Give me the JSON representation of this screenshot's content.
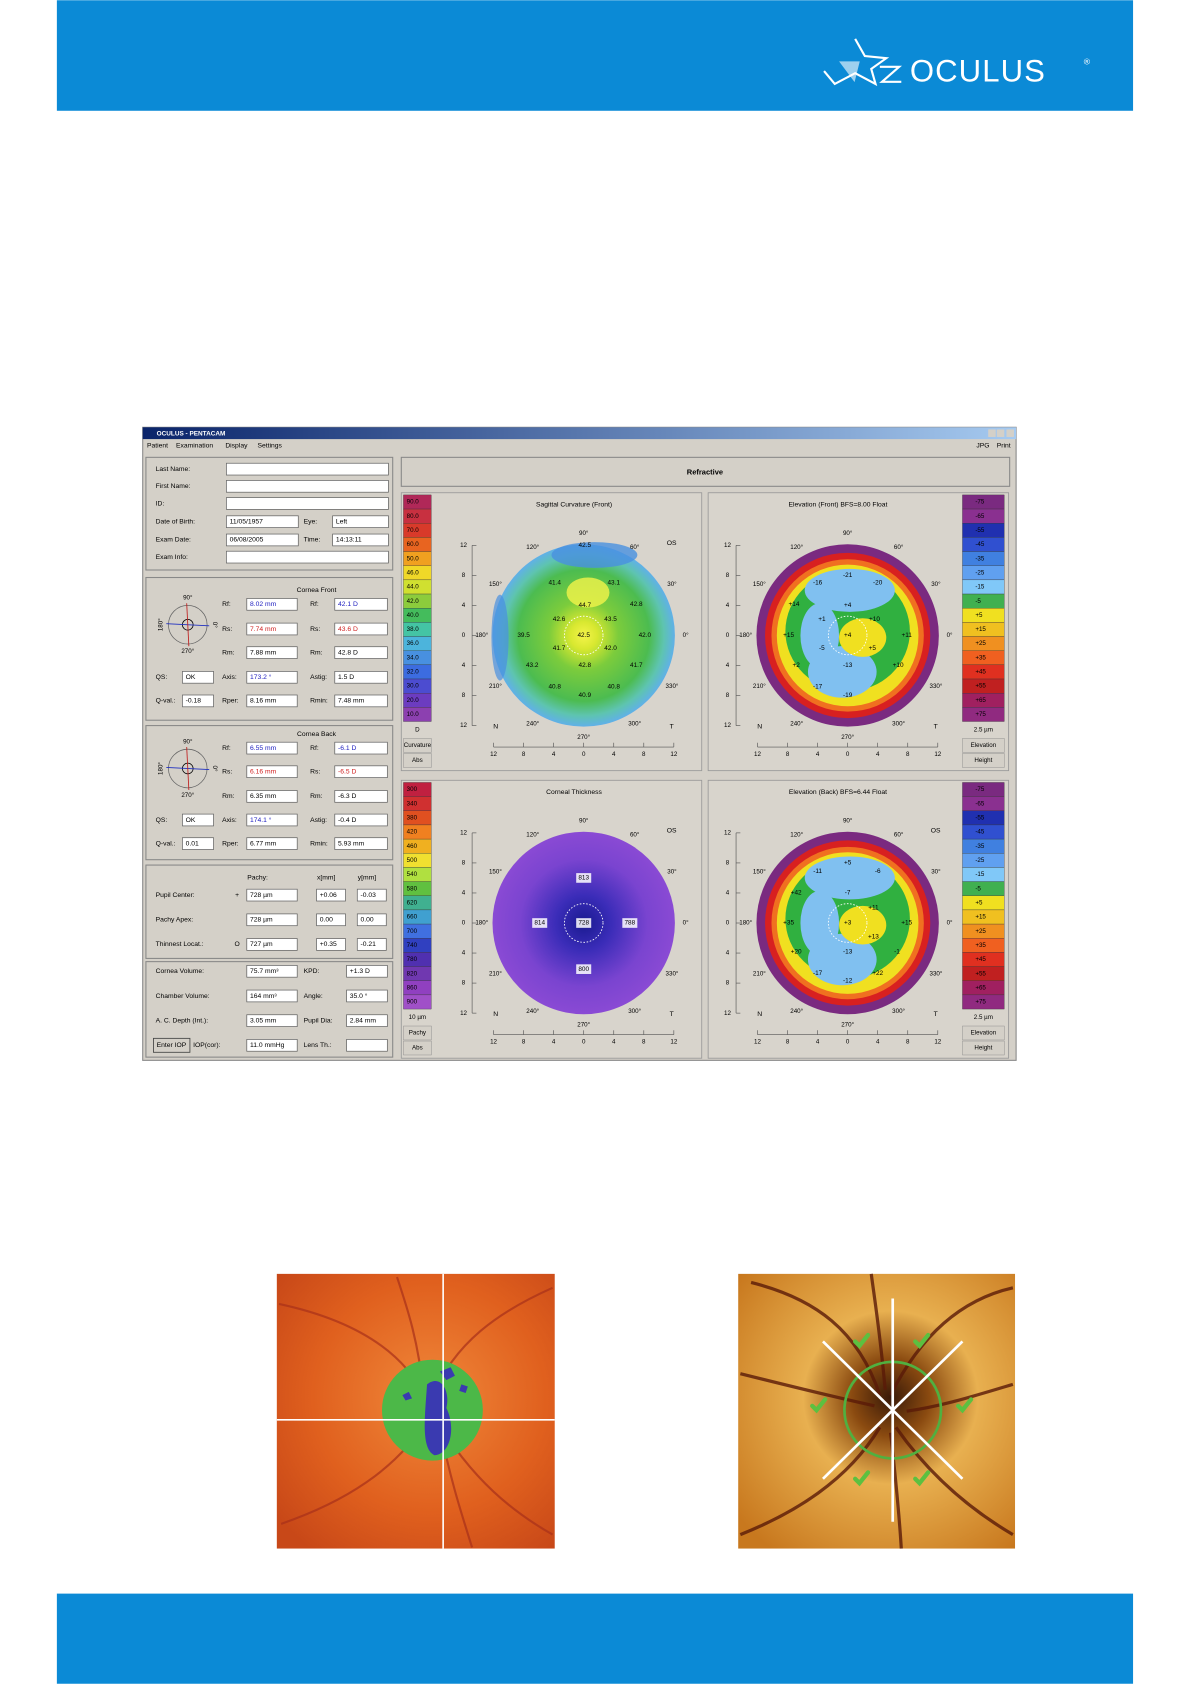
{
  "header": {
    "brand": "OCULUS",
    "registered": "®"
  },
  "window": {
    "title": "OCULUS - PENTACAM",
    "menu": [
      "Patient",
      "Examination",
      "Display",
      "Settings"
    ],
    "menu_right": [
      "JPG",
      "Print"
    ]
  },
  "patient": {
    "rows": [
      {
        "label": "Last Name:"
      },
      {
        "label": "First Name:"
      },
      {
        "label": "ID:"
      },
      {
        "label": "Date of Birth:",
        "value": "11/05/1957",
        "label2": "Eye:",
        "value2": "Left"
      },
      {
        "label": "Exam Date:",
        "value": "06/08/2005",
        "label2": "Time:",
        "value2": "14:13:11"
      },
      {
        "label": "Exam Info:"
      }
    ]
  },
  "compass": [
    "90°",
    "0°",
    "180°",
    "270°"
  ],
  "cornea_front": {
    "title": "Cornea Front",
    "rows": [
      [
        {
          "label": "Rf:",
          "value": "8.02 mm"
        },
        {
          "label": "Rf:",
          "value": "42.1 D"
        }
      ],
      [
        {
          "label": "Rs:",
          "value": "7.74 mm"
        },
        {
          "label": "Rs:",
          "value": "43.6 D"
        }
      ],
      [
        {
          "label": "Rm:",
          "value": "7.88 mm"
        },
        {
          "label": "Rm:",
          "value": "42.8 D"
        }
      ],
      [
        {
          "label": "QS:",
          "value": "OK"
        },
        {
          "label": "Axis:",
          "value": "173.2 °"
        },
        {
          "label": "Astig:",
          "value": "1.5 D"
        }
      ],
      [
        {
          "label": "Q-val.:",
          "value": "-0.18"
        },
        {
          "label": "Rper:",
          "value": "8.16 mm"
        },
        {
          "label": "Rmin:",
          "value": "7.48 mm"
        }
      ]
    ]
  },
  "cornea_back": {
    "title": "Cornea Back",
    "rows": [
      [
        {
          "label": "Rf:",
          "value": "6.55 mm"
        },
        {
          "label": "Rf:",
          "value": "-6.1 D"
        }
      ],
      [
        {
          "label": "Rs:",
          "value": "6.16 mm"
        },
        {
          "label": "Rs:",
          "value": "-6.5 D"
        }
      ],
      [
        {
          "label": "Rm:",
          "value": "6.35 mm"
        },
        {
          "label": "Rm:",
          "value": "-6.3 D"
        }
      ],
      [
        {
          "label": "QS:",
          "value": "OK"
        },
        {
          "label": "Axis:",
          "value": "174.1 °"
        },
        {
          "label": "Astig:",
          "value": "-0.4 D"
        }
      ],
      [
        {
          "label": "Q-val.:",
          "value": "0.01"
        },
        {
          "label": "Rper:",
          "value": "6.77 mm"
        },
        {
          "label": "Rmin:",
          "value": "5.93 mm"
        }
      ]
    ]
  },
  "pachy": {
    "headers": [
      "Pachy:",
      "x[mm]",
      "y[mm]"
    ],
    "rows": [
      {
        "label": "Pupil Center:",
        "symbol": "+",
        "values": [
          "728 µm",
          "+0.06",
          "-0.03"
        ]
      },
      {
        "label": "Pachy Apex:",
        "values": [
          "728 µm",
          "0.00",
          "0.00"
        ]
      },
      {
        "label": "Thinnest Locat.:",
        "symbol": "O",
        "values": [
          "727 µm",
          "+0.35",
          "-0.21"
        ]
      }
    ]
  },
  "volumes": {
    "rows": [
      {
        "label": "Cornea Volume:",
        "value": "75.7 mm³",
        "label2": "KPD:",
        "value2": "+1.3 D"
      },
      {
        "label": "Chamber Volume:",
        "value": "164 mm³",
        "label2": "Angle:",
        "value2": "35.0 °"
      },
      {
        "label": "A. C. Depth (Int.):",
        "value": "3.05 mm",
        "label2": "Pupil Dia:",
        "value2": "2.84 mm"
      },
      {
        "button": "Enter IOP",
        "label": "IOP(cor):",
        "value": "11.0 mmHg",
        "label2": "Lens Th.:"
      }
    ]
  },
  "refractive": "Refractive",
  "map_axes": {
    "angles": [
      "90°",
      "60°",
      "30°",
      "0°",
      "330°",
      "300°",
      "270°",
      "240°",
      "210°",
      "180°",
      "150°",
      "120°"
    ],
    "ticks": [
      "12",
      "8",
      "4",
      "0",
      "4",
      "8",
      "12"
    ],
    "nasal": "N",
    "temporal": "T",
    "eye": "OS"
  },
  "maps": [
    {
      "title": "Sagittal Curvature (Front)",
      "scale": [
        "90.0",
        "80.0",
        "70.0",
        "60.0",
        "50.0",
        "46.0",
        "44.0",
        "42.0",
        "40.0",
        "38.0",
        "36.0",
        "34.0",
        "32.0",
        "30.0",
        "20.0",
        "10.0"
      ],
      "unit": "D",
      "footer": [
        "Curvature",
        "Abs"
      ],
      "values": [
        "42.5",
        "43.1",
        "41.4",
        "44.7",
        "42.8",
        "42.6",
        "43.5",
        "39.5",
        "42.5",
        "42.0",
        "42.0",
        "41.7",
        "43.2",
        "42.8",
        "41.7",
        "40.8",
        "40.8",
        "40.9"
      ]
    },
    {
      "title": "Elevation (Front)  BFS=8.00 Float",
      "scale": [
        "-75",
        "-65",
        "-55",
        "-45",
        "-35",
        "-25",
        "-15",
        "-5",
        "+5",
        "+15",
        "+25",
        "+35",
        "+45",
        "+55",
        "+65",
        "+75"
      ],
      "unit": "2.5 µm",
      "footer": [
        "Elevation",
        "Height"
      ],
      "values": [
        "-16",
        "-21",
        "-20",
        "+14",
        "+4",
        "+10",
        "+1",
        "+15",
        "+4",
        "+11",
        "-5",
        "+5",
        "+2",
        "-13",
        "+10",
        "-17",
        "-19"
      ]
    },
    {
      "title": "Corneal Thickness",
      "scale": [
        "300",
        "340",
        "380",
        "420",
        "460",
        "500",
        "540",
        "580",
        "620",
        "660",
        "700",
        "740",
        "780",
        "820",
        "860",
        "900"
      ],
      "unit": "10 µm",
      "footer": [
        "Pachy",
        "Abs"
      ],
      "values": [
        "813",
        "814",
        "728",
        "788",
        "800"
      ]
    },
    {
      "title": "Elevation (Back)  BFS=6.44 Float",
      "scale": [
        "-75",
        "-65",
        "-55",
        "-45",
        "-35",
        "-25",
        "-15",
        "-5",
        "+5",
        "+15",
        "+25",
        "+35",
        "+45",
        "+55",
        "+65",
        "+75"
      ],
      "unit": "2.5 µm",
      "footer": [
        "Elevation",
        "Height"
      ],
      "values": [
        "+5",
        "-11",
        "-6",
        "-7",
        "+42",
        "+11",
        "+35",
        "+3",
        "+15",
        "+13",
        "-13",
        "+20",
        "-1",
        "-17",
        "+22",
        "-12"
      ]
    }
  ]
}
